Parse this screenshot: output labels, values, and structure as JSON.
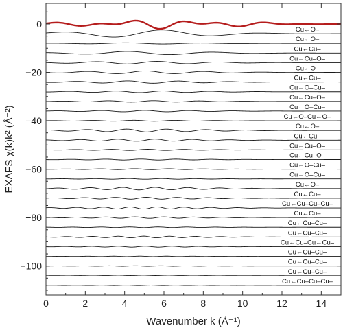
{
  "chart_data": {
    "type": "line",
    "xlabel": "Wavenumber k (Å⁻¹)",
    "ylabel": "EXAFS χ(k)k² (Å⁻²)",
    "xlim": [
      0,
      15
    ],
    "ylim": [
      -112,
      8.5
    ],
    "x_ticks": [
      0,
      2,
      4,
      6,
      8,
      10,
      12,
      14
    ],
    "y_ticks": [
      0,
      -20,
      -40,
      -60,
      -80,
      -100
    ],
    "grid": false,
    "colors": {
      "total": "#b51d1d",
      "path": "#1a1a1a",
      "frame": "#333333"
    },
    "series": [
      {
        "label": "",
        "offset": 0,
        "amp": 1.0,
        "freq": 3.0,
        "kind": "total"
      },
      {
        "label": "Cu←O–",
        "offset": -4,
        "amp": 1.6,
        "freq": 1.2
      },
      {
        "label": "Cu←O–",
        "offset": -8,
        "amp": 0.25,
        "freq": 1.6
      },
      {
        "label": "Cu←Cu–",
        "offset": -12,
        "amp": 0.7,
        "freq": 1.4
      },
      {
        "label": "Cu←Cu–O–",
        "offset": -16,
        "amp": 0.55,
        "freq": 2.0
      },
      {
        "label": "Cu←O–",
        "offset": -20,
        "amp": 0.6,
        "freq": 2.1
      },
      {
        "label": "Cu←Cu–",
        "offset": -24,
        "amp": 0.5,
        "freq": 2.4
      },
      {
        "label": "Cu←O–Cu–",
        "offset": -28,
        "amp": 0.35,
        "freq": 2.6
      },
      {
        "label": "Cu←Cu–O–",
        "offset": -32,
        "amp": 0.3,
        "freq": 2.7
      },
      {
        "label": "Cu←O–Cu–",
        "offset": -36,
        "amp": 0.3,
        "freq": 2.8
      },
      {
        "label": "Cu←O–Cu←O–",
        "offset": -40,
        "amp": 0.2,
        "freq": 3.0
      },
      {
        "label": "Cu←O–",
        "offset": -44,
        "amp": 0.6,
        "freq": 3.1
      },
      {
        "label": "Cu←Cu–",
        "offset": -48,
        "amp": 0.45,
        "freq": 3.3
      },
      {
        "label": "Cu←Cu–O–",
        "offset": -52,
        "amp": 0.25,
        "freq": 3.4
      },
      {
        "label": "Cu←Cu–O–",
        "offset": -56,
        "amp": 0.2,
        "freq": 3.5
      },
      {
        "label": "Cu←O–Cu–",
        "offset": -60,
        "amp": 0.2,
        "freq": 3.6
      },
      {
        "label": "Cu←O–Cu–",
        "offset": -64,
        "amp": 0.15,
        "freq": 3.7
      },
      {
        "label": "Cu←O–",
        "offset": -68,
        "amp": 0.55,
        "freq": 3.8
      },
      {
        "label": "Cu←Cu–",
        "offset": -72,
        "amp": 0.4,
        "freq": 4.0
      },
      {
        "label": "Cu←Cu–Cu–Cu–",
        "offset": -76,
        "amp": 0.45,
        "freq": 4.6
      },
      {
        "label": "Cu←Cu–",
        "offset": -80,
        "amp": 0.3,
        "freq": 4.2
      },
      {
        "label": "Cu←Cu–Cu–",
        "offset": -84,
        "amp": 0.15,
        "freq": 4.3
      },
      {
        "label": "Cu←Cu–Cu–",
        "offset": -88,
        "amp": 0.35,
        "freq": 4.8
      },
      {
        "label": "Cu←Cu–Cu←Cu–",
        "offset": -92,
        "amp": 0.2,
        "freq": 4.6
      },
      {
        "label": "Cu←Cu–Cu–",
        "offset": -96,
        "amp": 0.1,
        "freq": 4.7
      },
      {
        "label": "Cu←Cu–Cu–",
        "offset": -100,
        "amp": 0.1,
        "freq": 4.8
      },
      {
        "label": "Cu←Cu–Cu–",
        "offset": -104,
        "amp": 0.08,
        "freq": 4.9
      },
      {
        "label": "Cu←Cu–Cu–Cu–",
        "offset": -108,
        "amp": 0.08,
        "freq": 5.0
      }
    ]
  }
}
